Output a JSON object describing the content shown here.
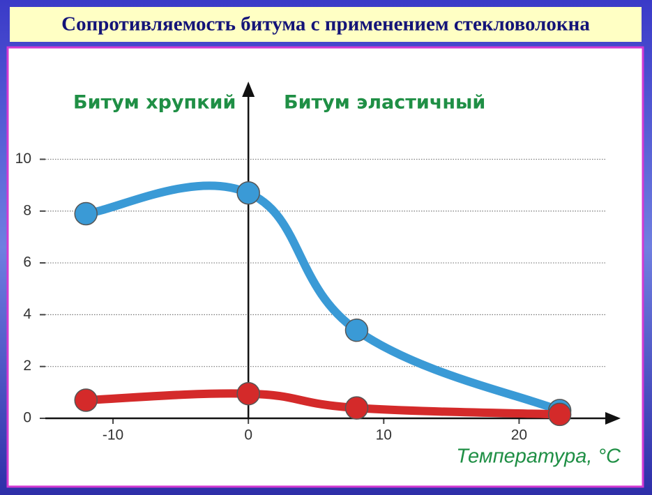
{
  "chart_data": {
    "type": "line",
    "title": "Сопротивляемость битума с применением стекловолокна",
    "annotations": [
      "Битум хрупкий",
      "Битум эластичный"
    ],
    "xlabel": "Температура, °C",
    "x": [
      -12,
      0,
      8,
      23
    ],
    "series": [
      {
        "color": "#3a9ad6",
        "values": [
          7.9,
          8.7,
          3.4,
          0.3
        ]
      },
      {
        "color": "#d42a2a",
        "values": [
          0.7,
          0.95,
          0.4,
          0.15
        ]
      }
    ],
    "xlim": [
      -15,
      27.5
    ],
    "xticks": [
      -10,
      0,
      10,
      20
    ],
    "ylim": [
      0,
      13
    ],
    "yticks": [
      0,
      2,
      4,
      6,
      8,
      10
    ],
    "grid": true
  }
}
